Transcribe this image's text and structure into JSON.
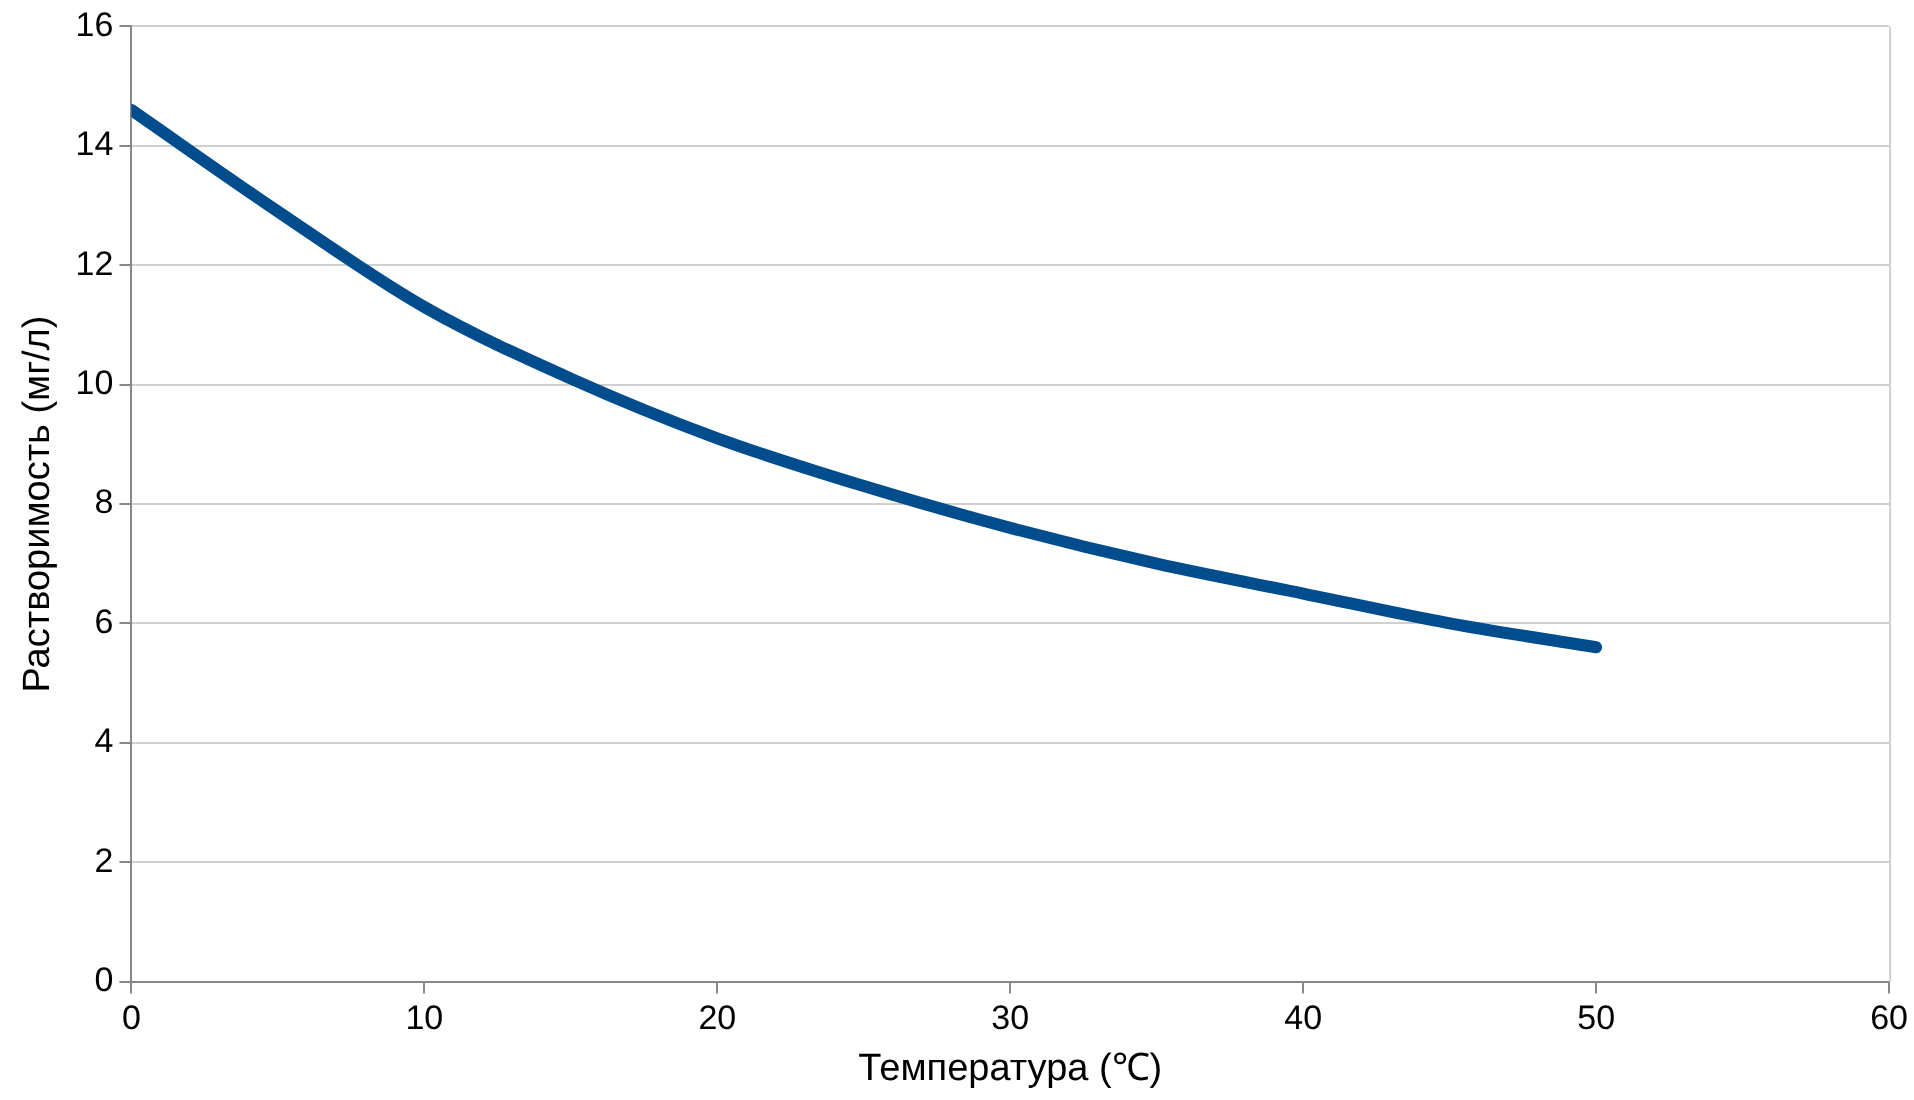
{
  "chart_data": {
    "type": "line",
    "xlabel": "Температура (℃)",
    "ylabel": "Растворимость (мг/л)",
    "x": [
      0,
      5,
      10,
      15,
      20,
      25,
      30,
      35,
      40,
      45,
      50
    ],
    "series": [
      {
        "color": "#004c8c",
        "values": [
          14.6,
          12.9,
          11.3,
          10.1,
          9.1,
          8.3,
          7.6,
          7.0,
          6.5,
          6.0,
          5.6
        ]
      }
    ],
    "xlim": [
      0,
      60
    ],
    "xticks": [
      0,
      10,
      20,
      30,
      40,
      50,
      60
    ],
    "ylim": [
      0,
      16
    ],
    "yticks": [
      0,
      2,
      4,
      6,
      8,
      10,
      12,
      14,
      16
    ],
    "grid": "y",
    "legend": false,
    "marker": "none",
    "line_style": "solid"
  }
}
